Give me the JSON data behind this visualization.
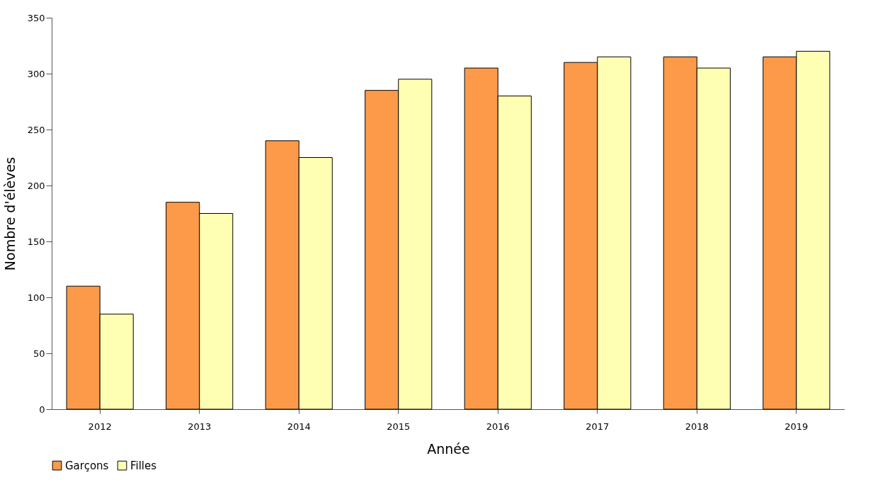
{
  "chart_data": {
    "type": "bar",
    "categories": [
      "2012",
      "2013",
      "2014",
      "2015",
      "2016",
      "2017",
      "2018",
      "2019"
    ],
    "series": [
      {
        "name": "Garçons",
        "color": "#fc9a4a",
        "values": [
          110,
          185,
          240,
          285,
          305,
          310,
          315,
          315
        ]
      },
      {
        "name": "Filles",
        "color": "#ffffb4",
        "values": [
          85,
          175,
          225,
          295,
          280,
          315,
          305,
          320
        ]
      }
    ],
    "xlabel": "Année",
    "ylabel": "Nombre d'élèves",
    "ylim": [
      0,
      350
    ],
    "yticks": [
      0,
      50,
      100,
      150,
      200,
      250,
      300,
      350
    ],
    "grid": false,
    "legend": "bottom"
  }
}
